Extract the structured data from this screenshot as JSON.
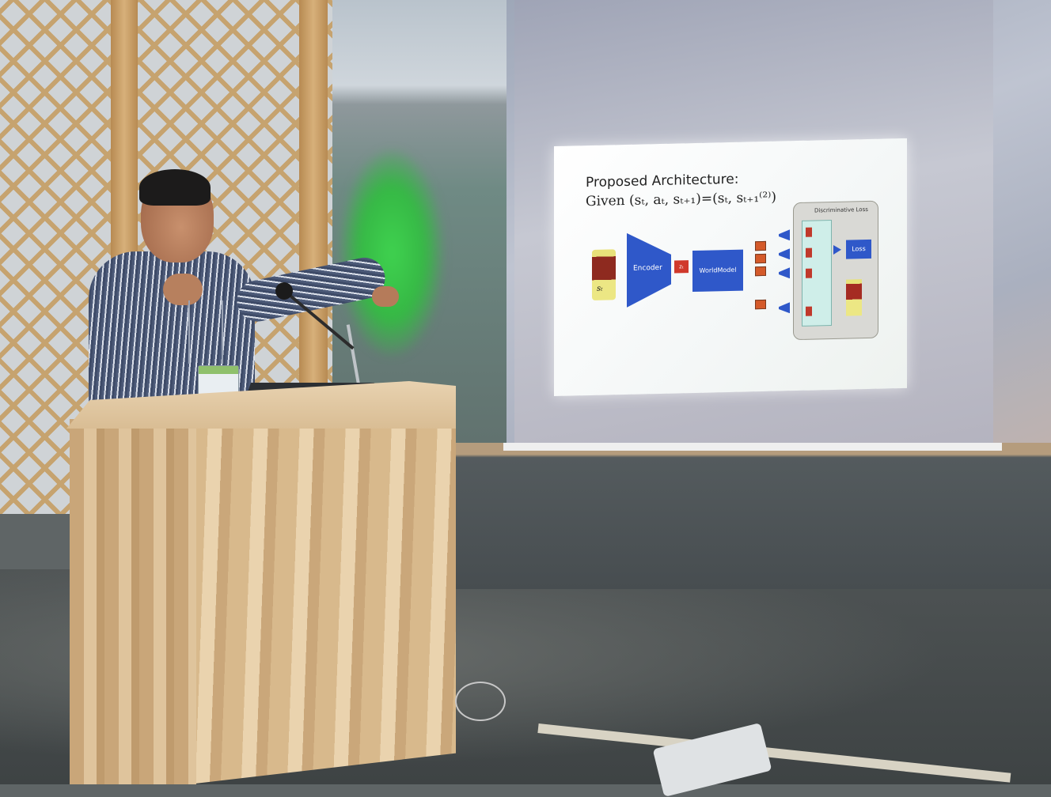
{
  "scene": "speaker at wooden lectern presenting a projected slide",
  "slide": {
    "title": "Proposed Architecture:",
    "subtitle": "Given (sₜ, aₜ, sₜ₊₁)=(sₜ, sₜ₊₁⁽²⁾)",
    "input_label": "sₜ",
    "encoder_label": "Encoder",
    "latent_label": "zₜ",
    "world_model_label": "WorldModel",
    "loss_panel_title": "Discriminative Loss",
    "loss_label": "Loss"
  },
  "colors": {
    "block_blue": "#2f58c9",
    "latent_red": "#d0392b",
    "slide_bg": "#ffffff"
  }
}
